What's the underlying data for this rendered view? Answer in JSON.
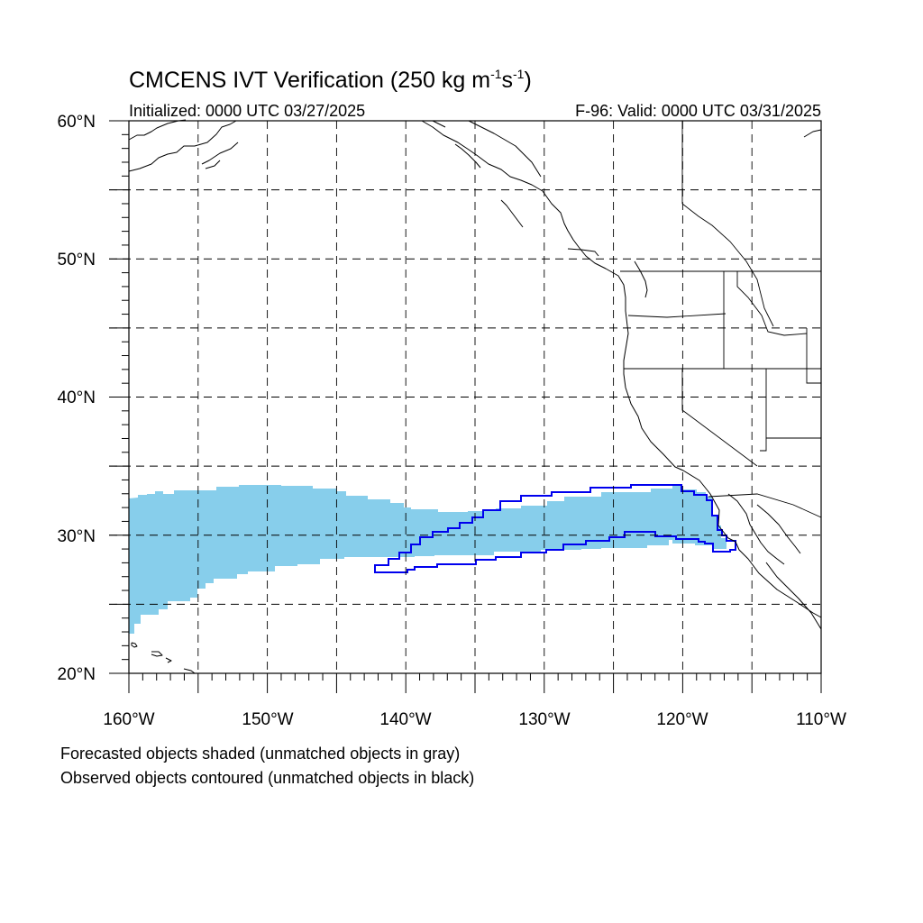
{
  "title": {
    "main": "CMCENS IVT Verification (250 kg m",
    "exp1": "-1",
    "mid": "s",
    "exp2": "-1",
    "close": ")"
  },
  "subtitle_left": "Initialized: 0000 UTC 03/27/2025",
  "subtitle_right": "F-96: Valid: 0000 UTC 03/31/2025",
  "lat_labels": [
    {
      "value": 60,
      "text": "60°N"
    },
    {
      "value": 50,
      "text": "50°N"
    },
    {
      "value": 40,
      "text": "40°N"
    },
    {
      "value": 30,
      "text": "30°N"
    },
    {
      "value": 20,
      "text": "20°N"
    }
  ],
  "lon_labels": [
    {
      "value": -160,
      "text": "160°W"
    },
    {
      "value": -150,
      "text": "150°W"
    },
    {
      "value": -140,
      "text": "140°W"
    },
    {
      "value": -130,
      "text": "130°W"
    },
    {
      "value": -120,
      "text": "120°W"
    },
    {
      "value": -110,
      "text": "110°W"
    }
  ],
  "caption_line1": "Forecasted objects shaded (unmatched objects in gray)",
  "caption_line2": "Observed objects contoured (unmatched objects in black)",
  "colors": {
    "forecast_fill": "#87ceeb",
    "observed_contour": "#0000ee",
    "lines": "#000000"
  },
  "map_extent": {
    "lon": [
      -160,
      -110
    ],
    "lat": [
      20,
      60
    ]
  },
  "grid_lines": {
    "lon": [
      -155,
      -150,
      -145,
      -140,
      -135,
      -130,
      -125,
      -120,
      -115
    ],
    "lat": [
      25,
      30,
      35,
      40,
      45,
      50,
      55
    ]
  }
}
